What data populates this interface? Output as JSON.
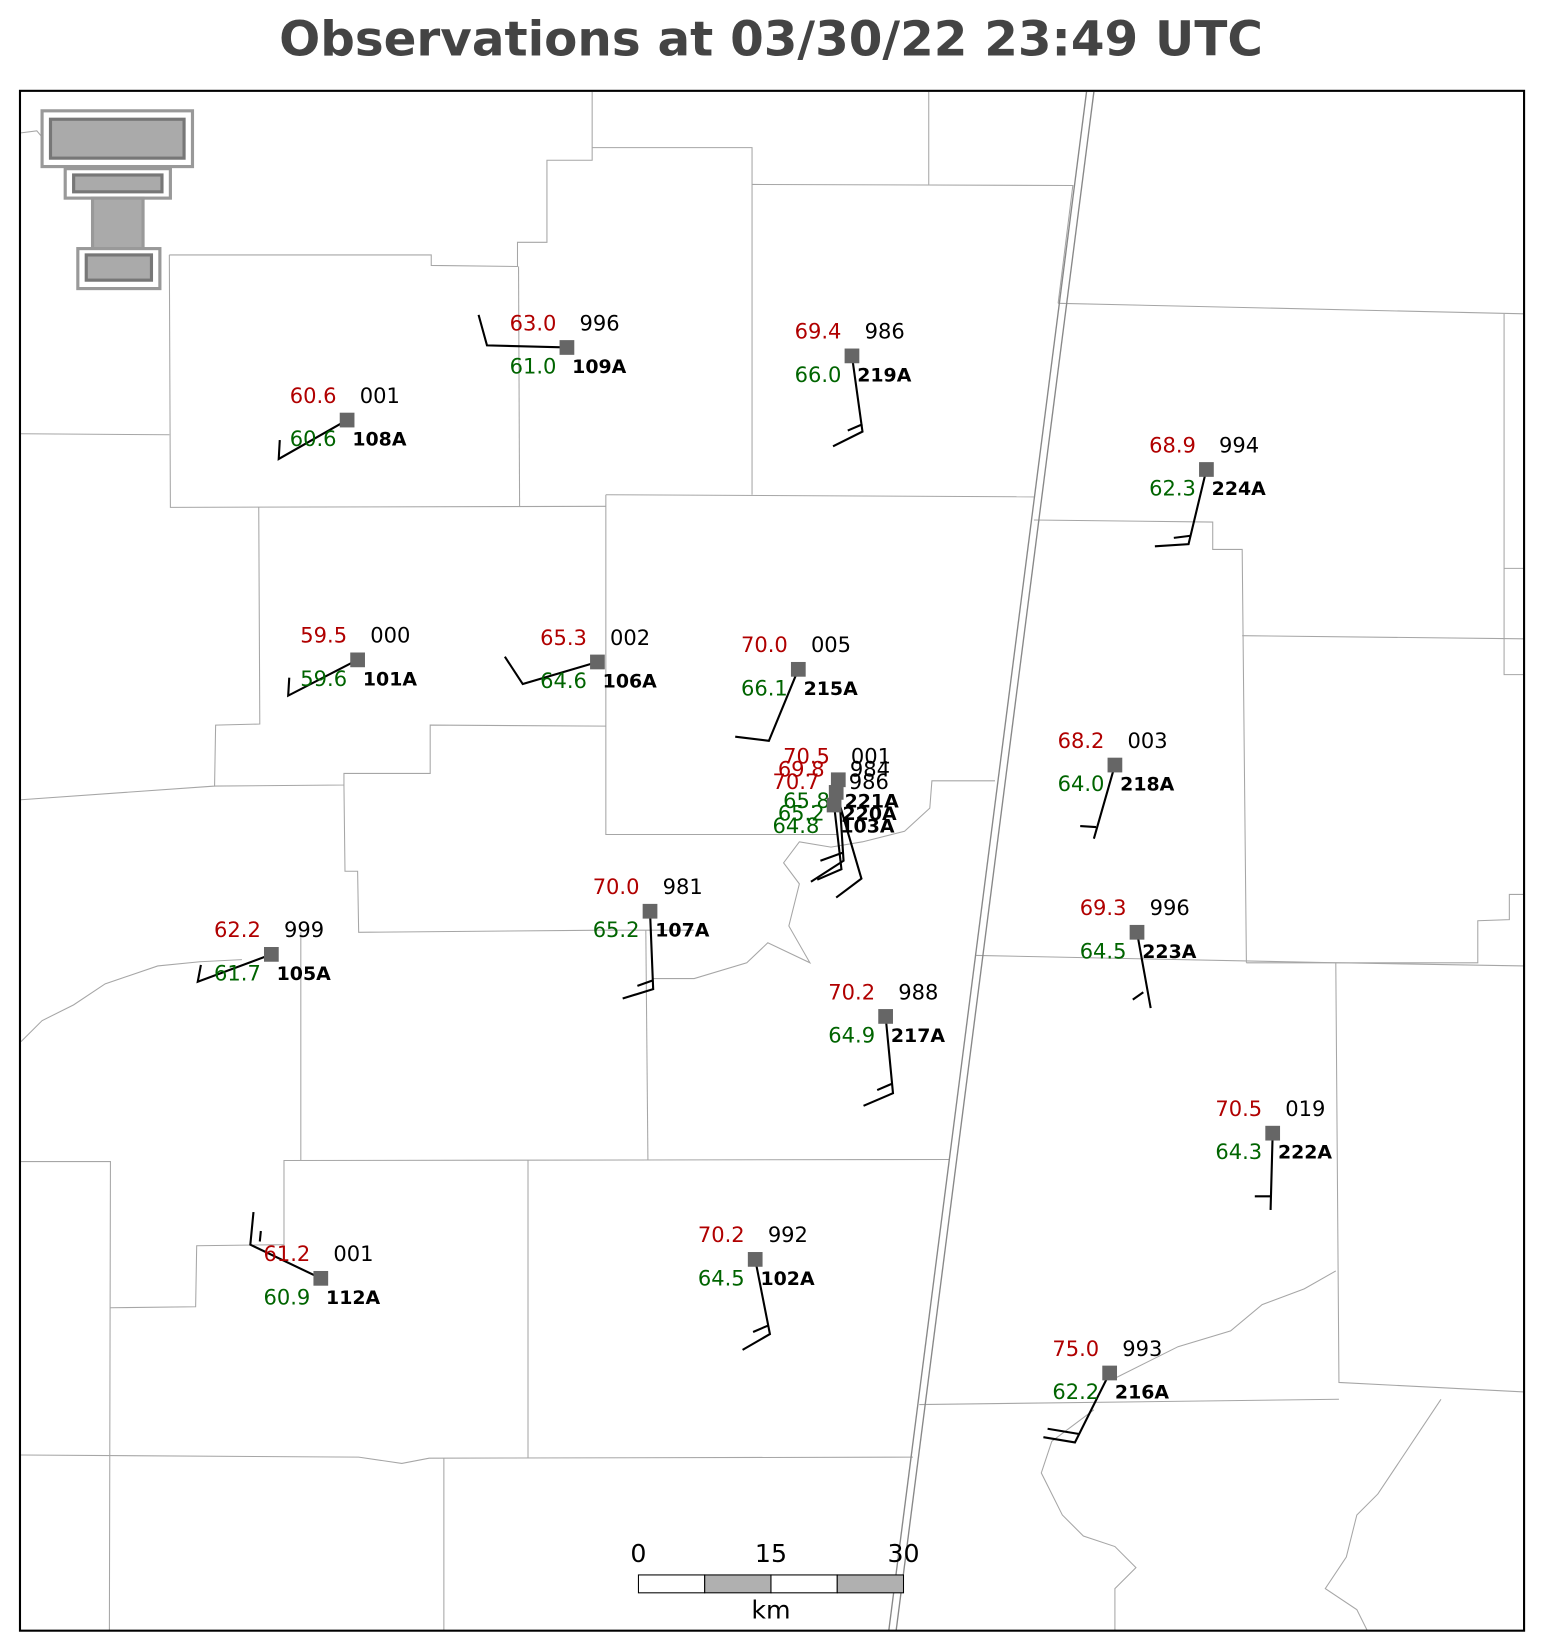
{
  "title": "Observations at 03/30/22 23:49 UTC",
  "stations": [
    {
      "id": "109A",
      "temperature": "63.0",
      "dewpoint": "61.0",
      "pressure": "996"
    },
    {
      "id": "219A",
      "temperature": "69.4",
      "dewpoint": "66.0",
      "pressure": "986"
    },
    {
      "id": "108A",
      "temperature": "60.6",
      "dewpoint": "60.6",
      "pressure": "001"
    },
    {
      "id": "224A",
      "temperature": "68.9",
      "dewpoint": "62.3",
      "pressure": "994"
    },
    {
      "id": "101A",
      "temperature": "59.5",
      "dewpoint": "59.6",
      "pressure": "000"
    },
    {
      "id": "106A",
      "temperature": "65.3",
      "dewpoint": "64.6",
      "pressure": "002"
    },
    {
      "id": "215A",
      "temperature": "70.0",
      "dewpoint": "66.1",
      "pressure": "005"
    },
    {
      "id": "218A",
      "temperature": "68.2",
      "dewpoint": "64.0",
      "pressure": "003"
    },
    {
      "id": "221A",
      "temperature": "70.5",
      "dewpoint": "65.8",
      "pressure": "001"
    },
    {
      "id": "220A",
      "temperature": "69.8",
      "dewpoint": "65.2",
      "pressure": "984"
    },
    {
      "id": "103A",
      "temperature": "70.7",
      "dewpoint": "64.8",
      "pressure": "986"
    },
    {
      "id": "107A",
      "temperature": "70.0",
      "dewpoint": "65.2",
      "pressure": "981"
    },
    {
      "id": "223A",
      "temperature": "69.3",
      "dewpoint": "64.5",
      "pressure": "996"
    },
    {
      "id": "105A",
      "temperature": "62.2",
      "dewpoint": "61.7",
      "pressure": "999"
    },
    {
      "id": "217A",
      "temperature": "70.2",
      "dewpoint": "64.9",
      "pressure": "988"
    },
    {
      "id": "222A",
      "temperature": "70.5",
      "dewpoint": "64.3",
      "pressure": "019"
    },
    {
      "id": "112A",
      "temperature": "61.2",
      "dewpoint": "60.9",
      "pressure": "001"
    },
    {
      "id": "102A",
      "temperature": "70.2",
      "dewpoint": "64.5",
      "pressure": "992"
    },
    {
      "id": "216A",
      "temperature": "75.0",
      "dewpoint": "62.2",
      "pressure": "993"
    }
  ],
  "scale_bar": {
    "ticks": [
      "0",
      "15",
      "30"
    ],
    "unit": "km"
  }
}
